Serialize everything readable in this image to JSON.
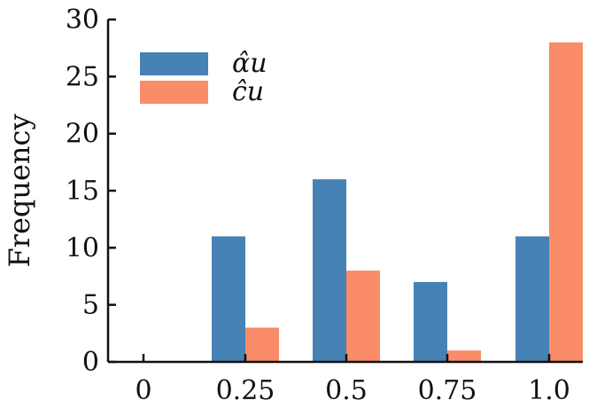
{
  "chart_data": {
    "type": "bar",
    "categories": [
      "0",
      "0.25",
      "0.5",
      "0.75",
      "1.0"
    ],
    "series": [
      {
        "name": "α̂u",
        "color": "#4682b4",
        "values": [
          0,
          11,
          16,
          7,
          11
        ]
      },
      {
        "name": "ĉu",
        "color": "#fa8c69",
        "values": [
          0,
          3,
          8,
          1,
          28
        ]
      }
    ],
    "ylabel": "Frequency",
    "xlabel": "",
    "ylim": [
      0,
      30
    ],
    "yticks": [
      0,
      5,
      10,
      15,
      20,
      25,
      30
    ],
    "grid": false,
    "legend_position": "top-left"
  }
}
